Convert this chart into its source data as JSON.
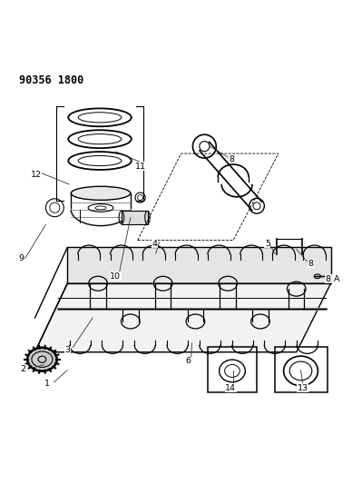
{
  "title": "90356 1800",
  "bg_color": "#ffffff",
  "line_color": "#000000",
  "fig_width": 3.99,
  "fig_height": 5.33,
  "dpi": 100
}
